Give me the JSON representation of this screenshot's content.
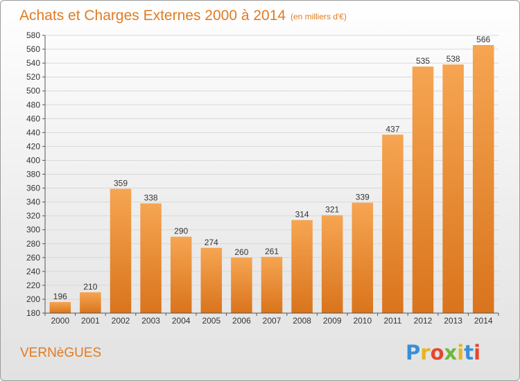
{
  "title": "Achats et Charges Externes 2000 à 2014",
  "unit": "(en milliers d'€)",
  "commune": "VERNèGUES",
  "logo": {
    "letters": [
      "P",
      "r",
      "o",
      "x",
      "i",
      "t",
      "i"
    ],
    "colors": [
      "#3a8fd6",
      "#e8b51e",
      "#e4472f",
      "#6bb93d",
      "#e8b51e",
      "#3a8fd6",
      "#e4472f"
    ]
  },
  "colors": {
    "bar": "#ef8a2c",
    "bar_light": "#f6a552",
    "bar_dark": "#d9741c",
    "title": "#e07b24"
  },
  "chart_data": {
    "type": "bar",
    "categories": [
      "2000",
      "2001",
      "2002",
      "2003",
      "2004",
      "2005",
      "2006",
      "2007",
      "2008",
      "2009",
      "2010",
      "2011",
      "2012",
      "2013",
      "2014"
    ],
    "values": [
      196,
      210,
      359,
      338,
      290,
      274,
      260,
      261,
      314,
      321,
      339,
      437,
      535,
      538,
      566
    ],
    "ylim": [
      180,
      580
    ],
    "yticks": [
      180,
      200,
      220,
      240,
      260,
      280,
      300,
      320,
      340,
      360,
      380,
      400,
      420,
      440,
      460,
      480,
      500,
      520,
      540,
      560,
      580
    ],
    "grid": true,
    "xlabel": "",
    "ylabel": ""
  }
}
